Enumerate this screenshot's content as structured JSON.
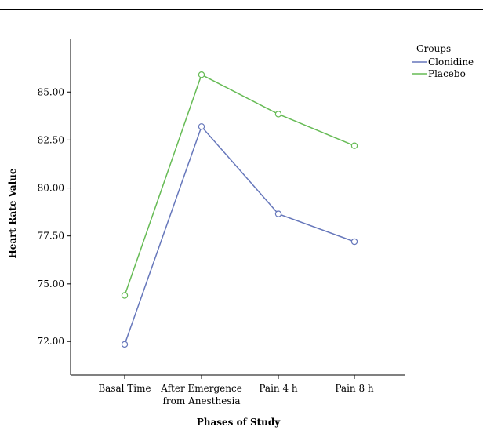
{
  "chart_data": {
    "type": "line",
    "xlabel": "Phases of Study",
    "ylabel": "Heart Rate Value",
    "categories": [
      [
        "Basal Time"
      ],
      [
        "After Emergence",
        "from Anesthesia"
      ],
      [
        "Pain 4 h"
      ],
      [
        "Pain 8 h"
      ]
    ],
    "yticks": [
      72.0,
      75.0,
      77.5,
      80.0,
      82.5,
      85.0
    ],
    "ytick_labels": [
      "72.00",
      "75.00",
      "77.50",
      "80.00",
      "82.50",
      "85.00"
    ],
    "ylim": [
      70.25,
      87.75
    ],
    "grid": false,
    "legend": {
      "title": "Groups",
      "placement": "top-right"
    },
    "series": [
      {
        "name": "Clonidine",
        "color": "#6677bb",
        "values": [
          71.85,
          83.2,
          78.65,
          77.2
        ]
      },
      {
        "name": "Placebo",
        "color": "#66bb55",
        "values": [
          74.4,
          85.9,
          83.85,
          82.2
        ]
      }
    ]
  }
}
